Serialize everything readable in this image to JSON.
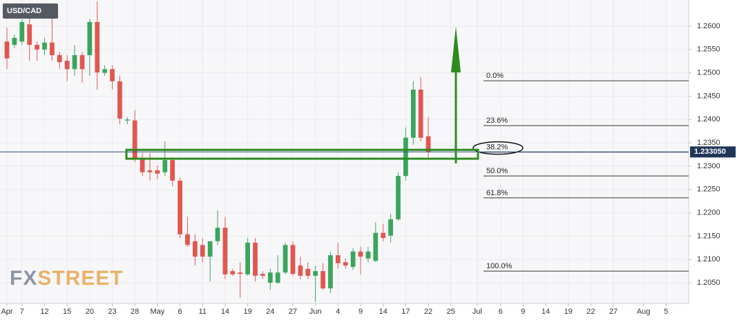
{
  "chart_data": {
    "type": "candlestick",
    "title": "USD/CAD",
    "logo": [
      "FX",
      "STREET"
    ],
    "open": [
      1.2567,
      1.256,
      1.2567,
      1.2604,
      1.256,
      1.255,
      1.2565,
      1.2538,
      1.2526,
      1.2508,
      1.2538,
      1.2538,
      1.2609,
      1.25,
      1.2508,
      1.2482,
      1.2398,
      1.2398,
      1.2316,
      1.2291,
      1.2291,
      1.2287,
      1.2313,
      1.2269,
      1.2154,
      1.2139,
      1.2131,
      1.2106,
      1.2139,
      1.2168,
      1.2075,
      1.2072,
      1.2068,
      1.2136,
      1.2069,
      1.205,
      1.205,
      1.2072,
      1.2131,
      1.2087,
      1.208,
      1.2065,
      1.2075,
      1.2038,
      1.2109,
      1.2094,
      1.2084,
      1.2117,
      1.2102,
      1.2097,
      1.2157,
      1.2151,
      1.2186,
      1.2279,
      1.2361,
      1.2464,
      1.2364
    ],
    "high": [
      1.2597,
      1.2582,
      1.2615,
      1.2627,
      1.2567,
      1.2575,
      1.2634,
      1.2545,
      1.2538,
      1.256,
      1.2545,
      1.2615,
      1.2653,
      1.2516,
      1.2516,
      1.2494,
      1.2405,
      1.242,
      1.2328,
      1.2328,
      1.2301,
      1.2353,
      1.2319,
      1.2275,
      1.2191,
      1.2154,
      1.2146,
      1.2139,
      1.2205,
      1.2191,
      1.208,
      1.2094,
      1.2146,
      1.2146,
      1.2075,
      1.208,
      1.2109,
      1.2136,
      1.2139,
      1.2106,
      1.2094,
      1.2087,
      1.2092,
      1.2117,
      1.2136,
      1.2102,
      1.2124,
      1.2127,
      1.2127,
      1.218,
      1.2176,
      1.2198,
      1.2287,
      1.2383,
      1.2482,
      1.2491,
      1.2405
    ],
    "low": [
      1.2508,
      1.2553,
      1.256,
      1.2526,
      1.2526,
      1.2538,
      1.2526,
      1.2508,
      1.2482,
      1.2494,
      1.2479,
      1.2494,
      1.2464,
      1.2494,
      1.2464,
      1.239,
      1.239,
      1.2309,
      1.2279,
      1.2269,
      1.2272,
      1.2279,
      1.2257,
      1.2146,
      1.2127,
      1.2087,
      1.2094,
      1.2053,
      1.2131,
      1.2058,
      1.2065,
      1.2018,
      1.2065,
      1.2053,
      1.2058,
      1.2035,
      1.2048,
      1.2068,
      1.2065,
      1.2058,
      1.2058,
      1.2009,
      1.2035,
      1.2028,
      1.208,
      1.208,
      1.2077,
      1.2068,
      1.2094,
      1.2094,
      1.2139,
      1.2136,
      1.2183,
      1.2269,
      1.2346,
      1.2353,
      1.2319
    ],
    "close": [
      1.2531,
      1.2575,
      1.2609,
      1.256,
      1.255,
      1.2565,
      1.2538,
      1.2523,
      1.2508,
      1.2538,
      1.2508,
      1.2609,
      1.2501,
      1.2508,
      1.2482,
      1.2402,
      1.24,
      1.2316,
      1.2287,
      1.2287,
      1.2284,
      1.2313,
      1.2269,
      1.2154,
      1.2131,
      1.2106,
      1.2106,
      1.2139,
      1.2168,
      1.2068,
      1.2068,
      1.2069,
      1.2136,
      1.2065,
      1.2065,
      1.2072,
      1.2072,
      1.2131,
      1.2069,
      1.2065,
      1.2065,
      1.2075,
      1.2038,
      1.2109,
      1.2092,
      1.2087,
      1.2117,
      1.2106,
      1.2117,
      1.2157,
      1.2146,
      1.2186,
      1.2279,
      1.2361,
      1.2464,
      1.2361,
      1.2331
    ],
    "up_color": "#3aa55d",
    "down_color": "#e0574f",
    "xlim": [
      -0.92,
      90.6
    ],
    "xticks": [
      {
        "value": 0,
        "label": "Apr"
      },
      {
        "value": 2,
        "label": "7"
      },
      {
        "value": 5,
        "label": "12"
      },
      {
        "value": 8,
        "label": "15"
      },
      {
        "value": 11,
        "label": "20"
      },
      {
        "value": 14,
        "label": "23"
      },
      {
        "value": 17,
        "label": "28"
      },
      {
        "value": 20,
        "label": "May"
      },
      {
        "value": 23,
        "label": "6"
      },
      {
        "value": 26,
        "label": "11"
      },
      {
        "value": 29,
        "label": "14"
      },
      {
        "value": 32,
        "label": "19"
      },
      {
        "value": 35,
        "label": "24"
      },
      {
        "value": 38,
        "label": "27"
      },
      {
        "value": 41,
        "label": "Jun"
      },
      {
        "value": 44,
        "label": "4"
      },
      {
        "value": 47,
        "label": "9"
      },
      {
        "value": 50,
        "label": "14"
      },
      {
        "value": 53,
        "label": "17"
      },
      {
        "value": 56,
        "label": "22"
      },
      {
        "value": 59,
        "label": "25"
      },
      {
        "value": 62.5,
        "label": "Jul"
      },
      {
        "value": 65.6,
        "label": "6"
      },
      {
        "value": 68.6,
        "label": "9"
      },
      {
        "value": 71.6,
        "label": "14"
      },
      {
        "value": 74.6,
        "label": "19"
      },
      {
        "value": 77.6,
        "label": "22"
      },
      {
        "value": 80.6,
        "label": "27"
      },
      {
        "value": 84.6,
        "label": "Aug"
      },
      {
        "value": 87.6,
        "label": "5"
      }
    ],
    "ylim": [
      1.20057,
      1.26562
    ],
    "yticks": [
      {
        "value": 1.205,
        "label": "1.2050"
      },
      {
        "value": 1.21,
        "label": "1.2100"
      },
      {
        "value": 1.215,
        "label": "1.2150"
      },
      {
        "value": 1.22,
        "label": "1.2200"
      },
      {
        "value": 1.225,
        "label": "1.2250"
      },
      {
        "value": 1.23,
        "label": "1.2300"
      },
      {
        "value": 1.235,
        "label": "1.2350"
      },
      {
        "value": 1.24,
        "label": "1.2400"
      },
      {
        "value": 1.245,
        "label": "1.2450"
      },
      {
        "value": 1.25,
        "label": "1.2500"
      },
      {
        "value": 1.255,
        "label": "1.2550"
      },
      {
        "value": 1.26,
        "label": "1.2600"
      }
    ],
    "grid": true,
    "last_price": {
      "value": 1.23305,
      "label": "1.233050"
    },
    "fibonacci": [
      {
        "value": 1.2483,
        "label": "0.0%"
      },
      {
        "value": 1.2387,
        "label": "23.6%"
      },
      {
        "value": 1.233,
        "label": "38.2%"
      },
      {
        "value": 1.2279,
        "label": "50.0%"
      },
      {
        "value": 1.2232,
        "label": "61.8%"
      },
      {
        "value": 1.2075,
        "label": "100.0%"
      }
    ],
    "zone": [
      1.2316,
      1.2335
    ],
    "arrow": [
      1.2306,
      1.26
    ]
  }
}
